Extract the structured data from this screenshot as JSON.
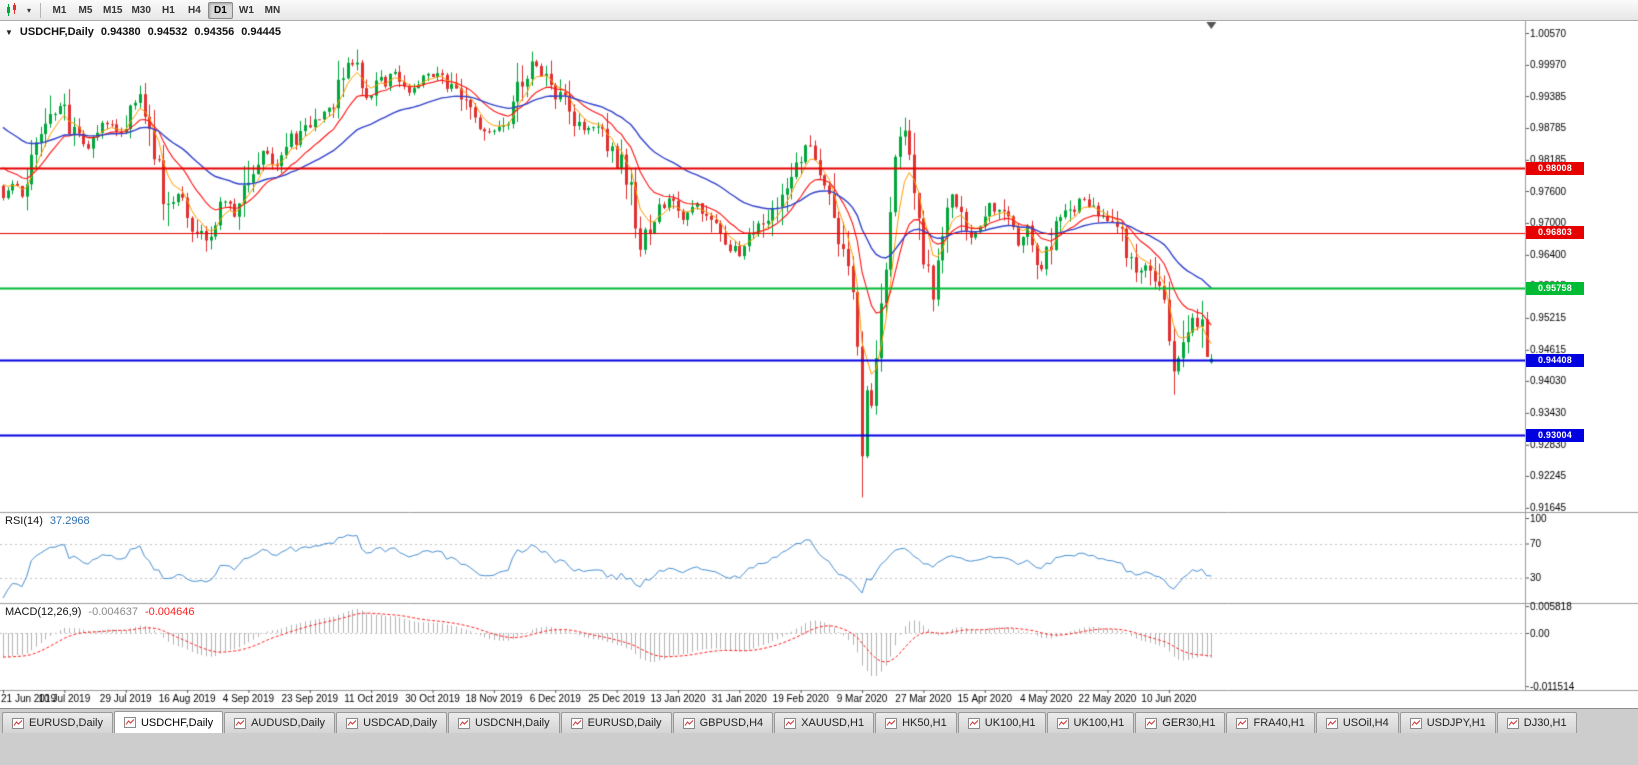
{
  "colors": {
    "up": "#00a83b",
    "down": "#e03030",
    "ma_fast": "#ff9c00",
    "ma_mid": "#ff1414",
    "ma_slow": "#3344cc",
    "rsi": "#4a90d2",
    "macd_hist": "#b4b4b4",
    "macd_signal": "#ff2222",
    "chart_bg": "#ffffff",
    "axis_text": "#000000",
    "separator": "#9c9c9c"
  },
  "icons": {
    "collapse_caret": "▼",
    "dropdown_caret": "▾"
  },
  "toolbar": {
    "timeframes": [
      {
        "label": "M1",
        "active": false
      },
      {
        "label": "M5",
        "active": false
      },
      {
        "label": "M15",
        "active": false
      },
      {
        "label": "M30",
        "active": false
      },
      {
        "label": "H1",
        "active": false
      },
      {
        "label": "H4",
        "active": false
      },
      {
        "label": "D1",
        "active": true
      },
      {
        "label": "W1",
        "active": false
      },
      {
        "label": "MN",
        "active": false
      }
    ]
  },
  "chart": {
    "symbol_title": "USDCHF,Daily",
    "ohlc": {
      "open": "0.94380",
      "high": "0.94532",
      "low": "0.94356",
      "close": "0.94445"
    }
  },
  "rsi_panel": {
    "label": "RSI(14)",
    "value": "37.2968",
    "axis": [
      "100",
      "70",
      "30"
    ],
    "levels": [
      70,
      30
    ]
  },
  "macd_panel": {
    "label": "MACD(12,26,9)",
    "value_main": "-0.004637",
    "value_signal": "-0.004646",
    "axis": [
      "0.005818",
      "0.00",
      "-0.011514"
    ]
  },
  "price_axis": {
    "ticks": [
      "1.00570",
      "0.99970",
      "0.99385",
      "0.98785",
      "0.98185",
      "0.97600",
      "0.97000",
      "0.96400",
      "0.95815",
      "0.95215",
      "0.94615",
      "0.94030",
      "0.93430",
      "0.92830",
      "0.92245",
      "0.91645"
    ]
  },
  "time_axis": {
    "dates": [
      "21 Jun 2019",
      "10 Jul 2019",
      "29 Jul 2019",
      "16 Aug 2019",
      "4 Sep 2019",
      "23 Sep 2019",
      "11 Oct 2019",
      "30 Oct 2019",
      "18 Nov 2019",
      "6 Dec 2019",
      "25 Dec 2019",
      "13 Jan 2020",
      "31 Jan 2020",
      "19 Feb 2020",
      "9 Mar 2020",
      "27 Mar 2020",
      "15 Apr 2020",
      "4 May 2020",
      "22 May 2020",
      "10 Jun 2020"
    ]
  },
  "levels": [
    {
      "price": 0.98008,
      "label": "0.98008",
      "color": "#e60000",
      "width": 2
    },
    {
      "price": 0.96803,
      "label": "0.96803",
      "color": "#e60000",
      "width": 1
    },
    {
      "price": 0.95758,
      "label": "0.95758",
      "color": "#00bb33",
      "width": 2
    },
    {
      "price": 0.94408,
      "label": "0.94408",
      "color": "#0000e0",
      "width": 2
    },
    {
      "price": 0.93004,
      "label": "0.93004",
      "color": "#0000e0",
      "width": 2
    }
  ],
  "chart_data": {
    "type": "candlestick",
    "symbol": "USDCHF",
    "period": "Daily",
    "visible_range": {
      "low": 0.91645,
      "high": 1.0057
    },
    "candle_count": 257,
    "pre_count": 70,
    "pre_path": [
      [
        0,
        1.019
      ],
      [
        15,
        1.013
      ],
      [
        35,
        1.004
      ],
      [
        50,
        0.992
      ],
      [
        60,
        0.983
      ],
      [
        69,
        0.9765
      ]
    ],
    "price_path": [
      [
        0,
        0.9745
      ],
      [
        2,
        0.9775
      ],
      [
        4,
        0.9748
      ],
      [
        6,
        0.98
      ],
      [
        9,
        0.988
      ],
      [
        12,
        0.9925
      ],
      [
        15,
        0.9862
      ],
      [
        18,
        0.9845
      ],
      [
        21,
        0.9895
      ],
      [
        24,
        0.987
      ],
      [
        27,
        0.991
      ],
      [
        29,
        0.994
      ],
      [
        31,
        0.9882
      ],
      [
        33,
        0.98
      ],
      [
        35,
        0.9722
      ],
      [
        37,
        0.9752
      ],
      [
        39,
        0.9718
      ],
      [
        41,
        0.969
      ],
      [
        43,
        0.9663
      ],
      [
        45,
        0.9705
      ],
      [
        47,
        0.9745
      ],
      [
        49,
        0.9718
      ],
      [
        52,
        0.9788
      ],
      [
        55,
        0.9838
      ],
      [
        58,
        0.9808
      ],
      [
        61,
        0.9852
      ],
      [
        64,
        0.9872
      ],
      [
        67,
        0.9902
      ],
      [
        70,
        0.993
      ],
      [
        73,
        0.9988
      ],
      [
        75,
        1.0005
      ],
      [
        77,
        0.9938
      ],
      [
        80,
        0.9962
      ],
      [
        83,
        0.9985
      ],
      [
        86,
        0.9948
      ],
      [
        89,
        0.9972
      ],
      [
        92,
        0.9982
      ],
      [
        95,
        0.9948
      ],
      [
        98,
        0.9918
      ],
      [
        101,
        0.9885
      ],
      [
        104,
        0.9868
      ],
      [
        107,
        0.9905
      ],
      [
        110,
        0.9958
      ],
      [
        112,
        0.9998
      ],
      [
        115,
        0.9978
      ],
      [
        117,
        0.9952
      ],
      [
        120,
        0.99
      ],
      [
        123,
        0.9875
      ],
      [
        126,
        0.9888
      ],
      [
        129,
        0.9838
      ],
      [
        131,
        0.9812
      ],
      [
        133,
        0.9752
      ],
      [
        135,
        0.9668
      ],
      [
        138,
        0.9715
      ],
      [
        141,
        0.9742
      ],
      [
        144,
        0.9705
      ],
      [
        147,
        0.9735
      ],
      [
        150,
        0.9695
      ],
      [
        153,
        0.9665
      ],
      [
        156,
        0.9645
      ],
      [
        159,
        0.968
      ],
      [
        162,
        0.9715
      ],
      [
        164,
        0.9745
      ],
      [
        166,
        0.9775
      ],
      [
        168,
        0.9815
      ],
      [
        170,
        0.9845
      ],
      [
        172,
        0.9825
      ],
      [
        174,
        0.9775
      ],
      [
        176,
        0.97
      ],
      [
        178,
        0.964
      ],
      [
        180,
        0.955
      ],
      [
        181,
        0.9455
      ],
      [
        182,
        0.9285
      ],
      [
        183,
        0.939
      ],
      [
        184,
        0.9345
      ],
      [
        185,
        0.9445
      ],
      [
        186,
        0.952
      ],
      [
        187,
        0.961
      ],
      [
        188,
        0.97
      ],
      [
        189,
        0.98
      ],
      [
        190,
        0.9865
      ],
      [
        191,
        0.9882
      ],
      [
        192,
        0.9835
      ],
      [
        193,
        0.9745
      ],
      [
        195,
        0.962
      ],
      [
        197,
        0.9572
      ],
      [
        199,
        0.9662
      ],
      [
        201,
        0.9762
      ],
      [
        203,
        0.9712
      ],
      [
        205,
        0.9668
      ],
      [
        207,
        0.9692
      ],
      [
        209,
        0.9722
      ],
      [
        211,
        0.9732
      ],
      [
        213,
        0.9695
      ],
      [
        215,
        0.9662
      ],
      [
        217,
        0.9692
      ],
      [
        218,
        0.9658
      ],
      [
        220,
        0.9612
      ],
      [
        222,
        0.9672
      ],
      [
        224,
        0.9702
      ],
      [
        226,
        0.9725
      ],
      [
        229,
        0.9745
      ],
      [
        232,
        0.9722
      ],
      [
        234,
        0.9712
      ],
      [
        237,
        0.9672
      ],
      [
        240,
        0.9625
      ],
      [
        243,
        0.9598
      ],
      [
        245,
        0.9562
      ],
      [
        247,
        0.9505
      ],
      [
        248,
        0.9425
      ],
      [
        249,
        0.9448
      ],
      [
        250,
        0.9482
      ],
      [
        252,
        0.9522
      ],
      [
        254,
        0.9508
      ],
      [
        255,
        0.9468
      ],
      [
        256,
        0.9445
      ]
    ],
    "special": [
      {
        "i": 29,
        "high": 0.9958
      },
      {
        "i": 35,
        "low": 0.9694
      },
      {
        "i": 43,
        "low": 0.9646
      },
      {
        "i": 75,
        "high": 1.0026
      },
      {
        "i": 112,
        "high": 1.0022
      },
      {
        "i": 182,
        "low": 0.9184
      },
      {
        "i": 191,
        "high": 0.9898
      },
      {
        "i": 248,
        "low": 0.9377
      }
    ],
    "last_candle": {
      "open": 0.9438,
      "high": 0.94532,
      "low": 0.94356,
      "close": 0.94445
    },
    "ma_periods": {
      "fast": 5,
      "mid": 13,
      "slow": 34
    },
    "rsi_period": 14,
    "macd_periods": [
      12,
      26,
      9
    ],
    "indicators": [
      {
        "name": "RSI",
        "period": 14,
        "current": 37.2968
      },
      {
        "name": "MACD",
        "params": [
          12,
          26,
          9
        ],
        "current": [
          -0.004637,
          -0.004646
        ]
      }
    ]
  },
  "tabs": [
    {
      "label": "EURUSD,Daily",
      "active": false
    },
    {
      "label": "USDCHF,Daily",
      "active": true
    },
    {
      "label": "AUDUSD,Daily",
      "active": false
    },
    {
      "label": "USDCAD,Daily",
      "active": false
    },
    {
      "label": "USDCNH,Daily",
      "active": false
    },
    {
      "label": "EURUSD,Daily",
      "active": false
    },
    {
      "label": "GBPUSD,H4",
      "active": false
    },
    {
      "label": "XAUUSD,H1",
      "active": false
    },
    {
      "label": "HK50,H1",
      "active": false
    },
    {
      "label": "UK100,H1",
      "active": false
    },
    {
      "label": "UK100,H1",
      "active": false
    },
    {
      "label": "GER30,H1",
      "active": false
    },
    {
      "label": "FRA40,H1",
      "active": false
    },
    {
      "label": "USOil,H4",
      "active": false
    },
    {
      "label": "USDJPY,H1",
      "active": false
    },
    {
      "label": "DJ30,H1",
      "active": false
    }
  ]
}
